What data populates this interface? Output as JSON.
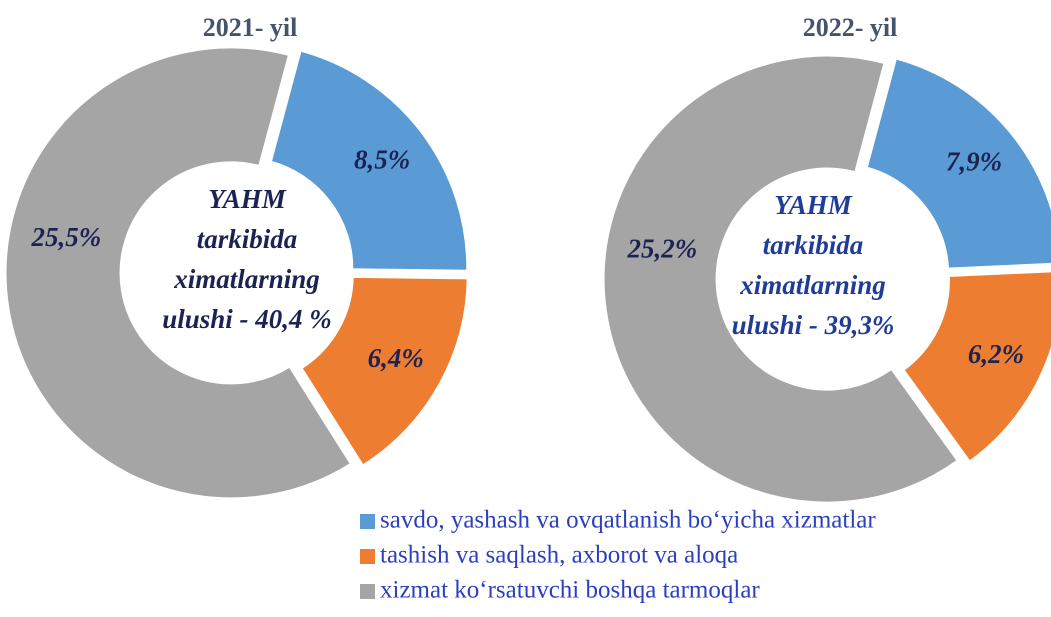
{
  "chart_data": [
    {
      "type": "donut",
      "title": "2021- yil",
      "values": [
        8.5,
        6.4,
        25.5
      ],
      "value_labels": [
        "8,5%",
        "6,4%",
        "25,5%"
      ],
      "colors": [
        "#5b9bd5",
        "#ed7d31",
        "#a5a5a5"
      ],
      "center_text": [
        "YAHM",
        "tarkibida",
        "ximatlarning",
        "ulushi - 40,4 %"
      ],
      "center_color": "#1c2352"
    },
    {
      "type": "donut",
      "title": "2022- yil",
      "values": [
        7.9,
        6.2,
        25.2
      ],
      "value_labels": [
        "7,9%",
        "6,2%",
        "25,2%"
      ],
      "colors": [
        "#5b9bd5",
        "#ed7d31",
        "#a5a5a5"
      ],
      "center_text": [
        "YAHM",
        "tarkibida",
        "ximatlarning",
        "ulushi - 39,3%"
      ],
      "center_color": "#1f3c96"
    }
  ],
  "legend": [
    "savdo, yashash va ovqatlanish bo‘yicha xizmatlar",
    "tashish va saqlash, axborot va aloqa",
    "xizmat ko‘rsatuvchi boshqa tarmoqlar"
  ]
}
